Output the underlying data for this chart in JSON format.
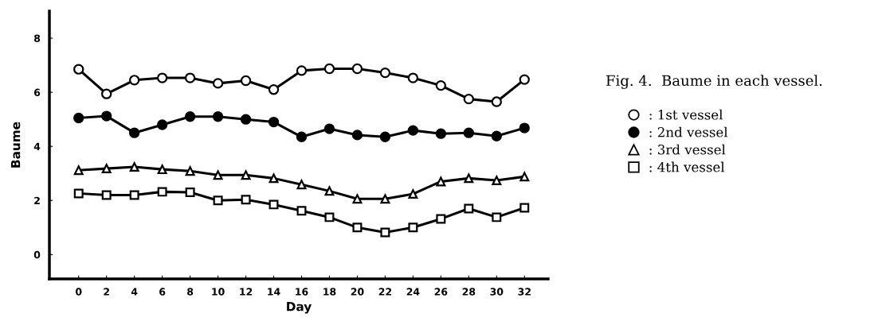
{
  "chart_data": {
    "type": "line",
    "title": "Fig. 4.  Baume in each vessel.",
    "xlabel": "Day",
    "ylabel": "Baume",
    "x": [
      0,
      2,
      4,
      6,
      8,
      10,
      12,
      14,
      16,
      18,
      20,
      22,
      24,
      26,
      28,
      30,
      32
    ],
    "series": [
      {
        "name": ": 1st vessel",
        "color": "#000000",
        "marker": "circle",
        "values": [
          6.85,
          5.94,
          6.45,
          6.53,
          6.53,
          6.33,
          6.43,
          6.1,
          6.8,
          6.87,
          6.87,
          6.72,
          6.53,
          6.25,
          5.75,
          5.65,
          6.47
        ]
      },
      {
        "name": ": 2nd vessel",
        "color": "#000000",
        "marker": "circle",
        "values": [
          5.05,
          5.12,
          4.5,
          4.8,
          5.1,
          5.1,
          5.0,
          4.9,
          4.35,
          4.65,
          4.42,
          4.35,
          4.59,
          4.47,
          4.5,
          4.38,
          4.68
        ]
      },
      {
        "name": ": 3rd vessel",
        "color": "#000000",
        "marker": "triangle",
        "values": [
          3.12,
          3.18,
          3.24,
          3.15,
          3.09,
          2.94,
          2.94,
          2.82,
          2.59,
          2.35,
          2.06,
          2.06,
          2.24,
          2.7,
          2.82,
          2.74,
          2.88
        ]
      },
      {
        "name": ": 4th vessel",
        "color": "#000000",
        "marker": "square",
        "values": [
          2.26,
          2.2,
          2.2,
          2.32,
          2.3,
          2.0,
          2.03,
          1.85,
          1.62,
          1.38,
          1.0,
          0.82,
          1.0,
          1.32,
          1.7,
          1.38,
          1.73
        ]
      }
    ],
    "xlim": [
      -2.1,
      33.7
    ],
    "ylim": [
      -0.9,
      9.0
    ],
    "xticks": [
      0,
      2,
      4,
      6,
      8,
      10,
      12,
      14,
      16,
      18,
      20,
      22,
      24,
      26,
      28,
      30,
      32
    ],
    "yticks": [
      0,
      2,
      4,
      6,
      8
    ],
    "grid": false,
    "legend": "right",
    "line_style": "solid"
  }
}
